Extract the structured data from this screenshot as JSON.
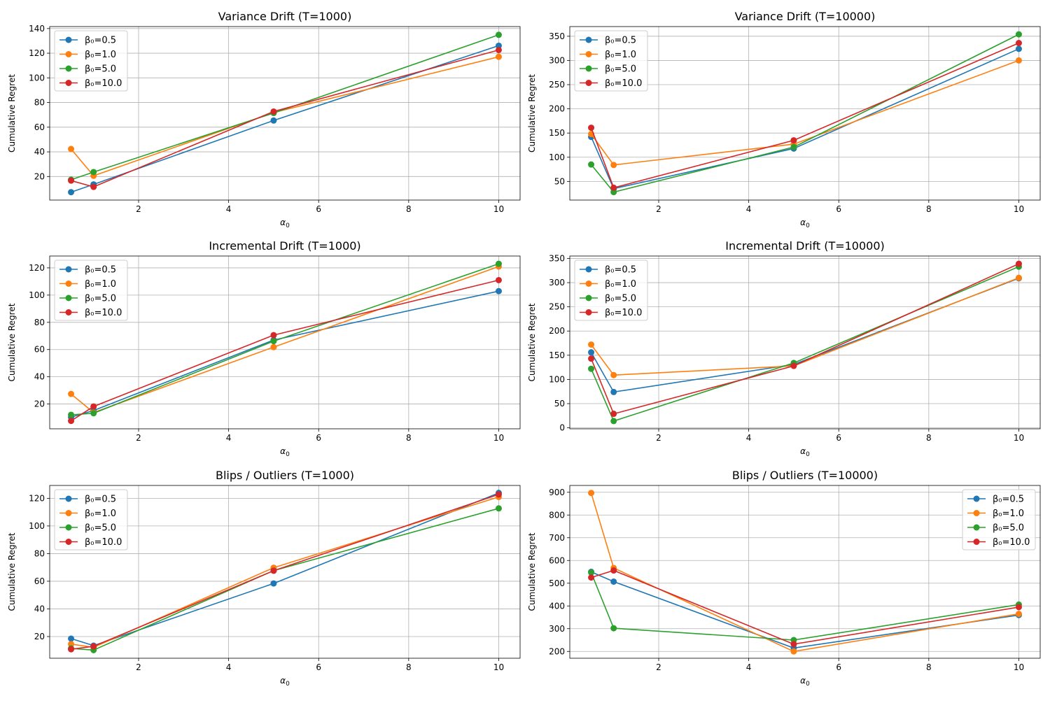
{
  "figure": {
    "xlabel": "α",
    "xlabel_sub": "0",
    "ylabel": "Cumulative Regret",
    "series_colors": [
      "#1f77b4",
      "#ff7f0e",
      "#2ca02c",
      "#d62728"
    ],
    "x": [
      0.5,
      1.0,
      5.0,
      10.0
    ]
  },
  "chart_data": [
    {
      "type": "line",
      "title": "Variance Drift (T=1000)",
      "xlabel": "α0",
      "ylabel": "Cumulative Regret",
      "xlim": [
        0.025,
        10.475
      ],
      "ylim": [
        0.9,
        141.6
      ],
      "xticks": [
        2,
        4,
        6,
        8,
        10
      ],
      "yticks": [
        20,
        40,
        60,
        80,
        100,
        120,
        140
      ],
      "legend": "top-left",
      "x": [
        0.5,
        1.0,
        5.0,
        10.0
      ],
      "series": [
        {
          "name": "β₀=0.5",
          "values": [
            7.3,
            13.6,
            65.4,
            126.1
          ]
        },
        {
          "name": "β₀=1.0",
          "values": [
            42.3,
            20.6,
            71.9,
            117.1
          ]
        },
        {
          "name": "β₀=5.0",
          "values": [
            17.4,
            23.6,
            71.5,
            134.9
          ]
        },
        {
          "name": "β₀=10.0",
          "values": [
            16.7,
            11.6,
            72.7,
            122.6
          ]
        }
      ]
    },
    {
      "type": "line",
      "title": "Variance Drift (T=10000)",
      "xlabel": "α0",
      "ylabel": "Cumulative Regret",
      "xlim": [
        0.025,
        10.475
      ],
      "ylim": [
        11.5,
        370.0
      ],
      "xticks": [
        2,
        4,
        6,
        8,
        10
      ],
      "yticks": [
        50,
        100,
        150,
        200,
        250,
        300,
        350
      ],
      "legend": "top-left",
      "x": [
        0.5,
        1.0,
        5.0,
        10.0
      ],
      "series": [
        {
          "name": "β₀=0.5",
          "values": [
            142.0,
            35.0,
            118.0,
            324.0
          ]
        },
        {
          "name": "β₀=1.0",
          "values": [
            148.0,
            84.0,
            127.0,
            300.0
          ]
        },
        {
          "name": "β₀=5.0",
          "values": [
            85.0,
            28.0,
            121.0,
            354.0
          ]
        },
        {
          "name": "β₀=10.0",
          "values": [
            161.0,
            37.0,
            135.0,
            336.0
          ]
        }
      ]
    },
    {
      "type": "line",
      "title": "Incremental Drift (T=1000)",
      "xlabel": "α0",
      "ylabel": "Cumulative Regret",
      "xlim": [
        0.025,
        10.475
      ],
      "ylim": [
        1.8,
        128.7
      ],
      "xticks": [
        2,
        4,
        6,
        8,
        10
      ],
      "yticks": [
        20,
        40,
        60,
        80,
        100,
        120
      ],
      "legend": "top-left",
      "x": [
        0.5,
        1.0,
        5.0,
        10.0
      ],
      "series": [
        {
          "name": "β₀=0.5",
          "values": [
            10.4,
            15.2,
            67.0,
            102.9
          ]
        },
        {
          "name": "β₀=1.0",
          "values": [
            27.4,
            13.7,
            61.8,
            121.0
          ]
        },
        {
          "name": "β₀=5.0",
          "values": [
            12.1,
            13.2,
            66.2,
            123.0
          ]
        },
        {
          "name": "β₀=10.0",
          "values": [
            7.6,
            18.2,
            70.6,
            111.0
          ]
        }
      ]
    },
    {
      "type": "line",
      "title": "Incremental Drift (T=10000)",
      "xlabel": "α0",
      "ylabel": "Cumulative Regret",
      "xlim": [
        0.025,
        10.475
      ],
      "ylim": [
        -2.0,
        355.0
      ],
      "xticks": [
        2,
        4,
        6,
        8,
        10
      ],
      "yticks": [
        0,
        50,
        100,
        150,
        200,
        250,
        300,
        350
      ],
      "legend": "top-left",
      "x": [
        0.5,
        1.0,
        5.0,
        10.0
      ],
      "series": [
        {
          "name": "β₀=0.5",
          "values": [
            156.0,
            74.0,
            131.0,
            309.0
          ]
        },
        {
          "name": "β₀=1.0",
          "values": [
            172.0,
            109.0,
            128.0,
            310.0
          ]
        },
        {
          "name": "β₀=5.0",
          "values": [
            122.0,
            14.0,
            134.0,
            333.0
          ]
        },
        {
          "name": "β₀=10.0",
          "values": [
            143.0,
            29.0,
            128.0,
            339.0
          ]
        }
      ]
    },
    {
      "type": "line",
      "title": "Blips / Outliers (T=1000)",
      "xlabel": "α0",
      "ylabel": "Cumulative Regret",
      "xlim": [
        0.025,
        10.475
      ],
      "ylim": [
        4.3,
        129.3
      ],
      "xticks": [
        2,
        4,
        6,
        8,
        10
      ],
      "yticks": [
        20,
        40,
        60,
        80,
        100,
        120
      ],
      "legend": "top-left",
      "x": [
        0.5,
        1.0,
        5.0,
        10.0
      ],
      "series": [
        {
          "name": "β₀=0.5",
          "values": [
            18.5,
            13.4,
            58.4,
            123.9
          ]
        },
        {
          "name": "β₀=1.0",
          "values": [
            14.5,
            12.2,
            69.8,
            121.0
          ]
        },
        {
          "name": "β₀=5.0",
          "values": [
            11.4,
            10.2,
            67.7,
            112.7
          ]
        },
        {
          "name": "β₀=10.0",
          "values": [
            10.8,
            12.9,
            67.6,
            122.8
          ]
        }
      ]
    },
    {
      "type": "line",
      "title": "Blips / Outliers (T=10000)",
      "xlabel": "α0",
      "ylabel": "Cumulative Regret",
      "xlim": [
        0.025,
        10.475
      ],
      "ylim": [
        170.0,
        930.0
      ],
      "xticks": [
        2,
        4,
        6,
        8,
        10
      ],
      "yticks": [
        200,
        300,
        400,
        500,
        600,
        700,
        800,
        900
      ],
      "legend": "top-right",
      "x": [
        0.5,
        1.0,
        5.0,
        10.0
      ],
      "series": [
        {
          "name": "β₀=0.5",
          "values": [
            550.0,
            507.0,
            215.0,
            360.0
          ]
        },
        {
          "name": "β₀=1.0",
          "values": [
            897.0,
            567.0,
            200.0,
            365.0
          ]
        },
        {
          "name": "β₀=5.0",
          "values": [
            547.0,
            302.0,
            250.0,
            406.0
          ]
        },
        {
          "name": "β₀=10.0",
          "values": [
            525.0,
            556.0,
            232.0,
            395.0
          ]
        }
      ]
    }
  ]
}
